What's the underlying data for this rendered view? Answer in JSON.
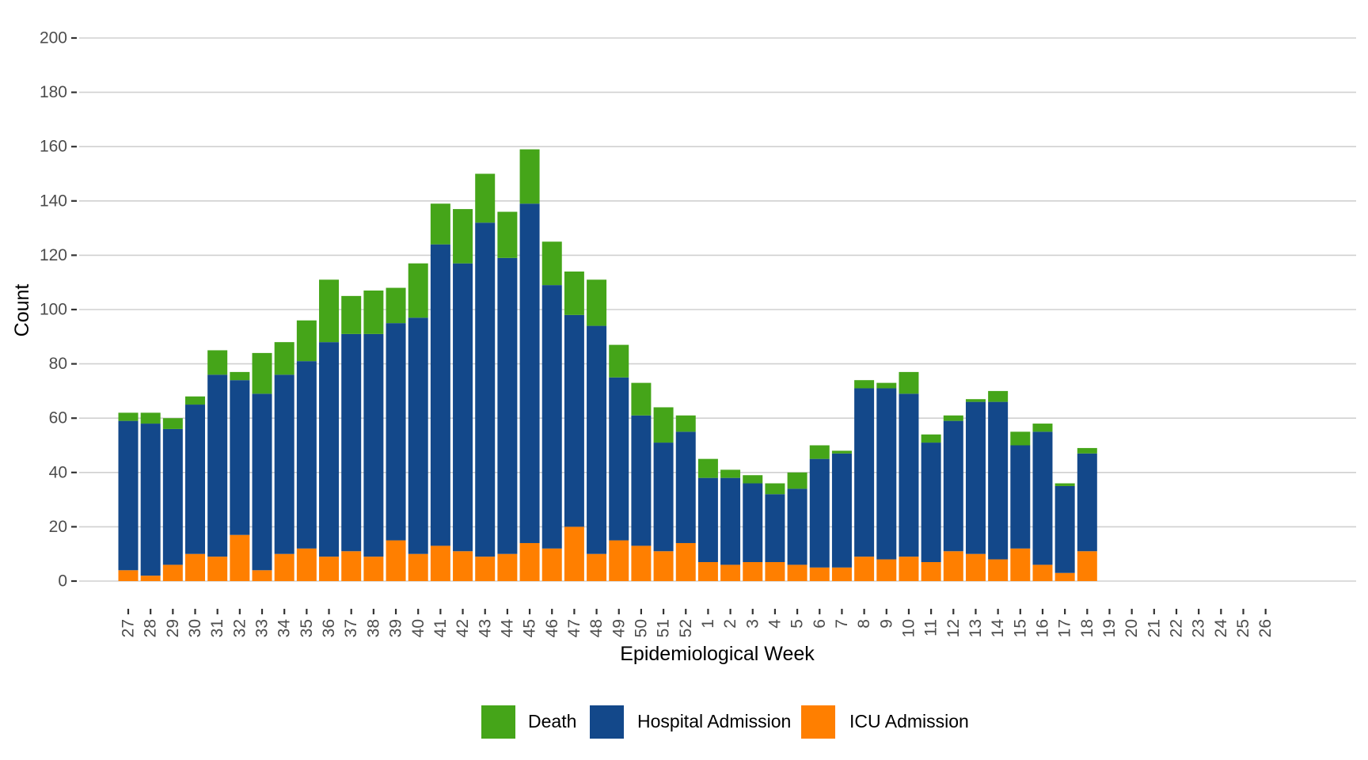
{
  "chart_data": {
    "type": "bar",
    "stacked": true,
    "title": "",
    "xlabel": "Epidemiological Week",
    "ylabel": "Count",
    "ylim": [
      0,
      200
    ],
    "yticks": [
      0,
      20,
      40,
      60,
      80,
      100,
      120,
      140,
      160,
      180,
      200
    ],
    "grid": "horizontal",
    "legend_position": "bottom",
    "categories": [
      "27",
      "28",
      "29",
      "30",
      "31",
      "32",
      "33",
      "34",
      "35",
      "36",
      "37",
      "38",
      "39",
      "40",
      "41",
      "42",
      "43",
      "44",
      "45",
      "46",
      "47",
      "48",
      "49",
      "50",
      "51",
      "52",
      "1",
      "2",
      "3",
      "4",
      "5",
      "6",
      "7",
      "8",
      "9",
      "10",
      "11",
      "12",
      "13",
      "14",
      "15",
      "16",
      "17",
      "18",
      "19",
      "20",
      "21",
      "22",
      "23",
      "24",
      "25",
      "26"
    ],
    "series": [
      {
        "name": "ICU Admission",
        "color": "#ff7f00",
        "values": [
          4,
          2,
          6,
          10,
          9,
          17,
          4,
          10,
          12,
          9,
          11,
          9,
          15,
          10,
          13,
          11,
          9,
          10,
          14,
          12,
          20,
          10,
          15,
          13,
          11,
          14,
          7,
          6,
          7,
          7,
          6,
          5,
          5,
          9,
          8,
          9,
          7,
          11,
          10,
          8,
          12,
          6,
          3,
          11,
          null,
          null,
          null,
          null,
          null,
          null,
          null,
          null
        ]
      },
      {
        "name": "Hospital Admission",
        "color": "#13488a",
        "values": [
          55,
          56,
          50,
          55,
          67,
          57,
          65,
          66,
          69,
          79,
          80,
          82,
          80,
          87,
          111,
          106,
          123,
          109,
          125,
          97,
          78,
          84,
          60,
          48,
          40,
          41,
          31,
          32,
          29,
          25,
          28,
          40,
          42,
          62,
          63,
          60,
          44,
          48,
          56,
          58,
          38,
          49,
          32,
          36,
          null,
          null,
          null,
          null,
          null,
          null,
          null,
          null
        ]
      },
      {
        "name": "Death",
        "color": "#45a519",
        "values": [
          3,
          4,
          4,
          3,
          9,
          3,
          15,
          12,
          15,
          23,
          14,
          16,
          13,
          20,
          15,
          20,
          18,
          17,
          20,
          16,
          16,
          17,
          12,
          12,
          13,
          6,
          7,
          3,
          3,
          4,
          6,
          5,
          1,
          3,
          2,
          8,
          3,
          2,
          1,
          4,
          5,
          3,
          1,
          2,
          null,
          null,
          null,
          null,
          null,
          null,
          null,
          null
        ]
      }
    ],
    "totals": [
      62,
      62,
      60,
      68,
      85,
      77,
      84,
      88,
      96,
      111,
      105,
      107,
      108,
      117,
      139,
      137,
      150,
      136,
      159,
      125,
      114,
      111,
      87,
      73,
      64,
      61,
      45,
      41,
      39,
      36,
      40,
      50,
      48,
      74,
      73,
      77,
      54,
      61,
      67,
      70,
      55,
      58,
      36,
      49,
      null,
      null,
      null,
      null,
      null,
      null,
      null,
      null
    ],
    "legend": [
      {
        "label": "Death",
        "color": "#45a519"
      },
      {
        "label": "Hospital Admission",
        "color": "#13488a"
      },
      {
        "label": "ICU Admission",
        "color": "#ff7f00"
      }
    ]
  }
}
